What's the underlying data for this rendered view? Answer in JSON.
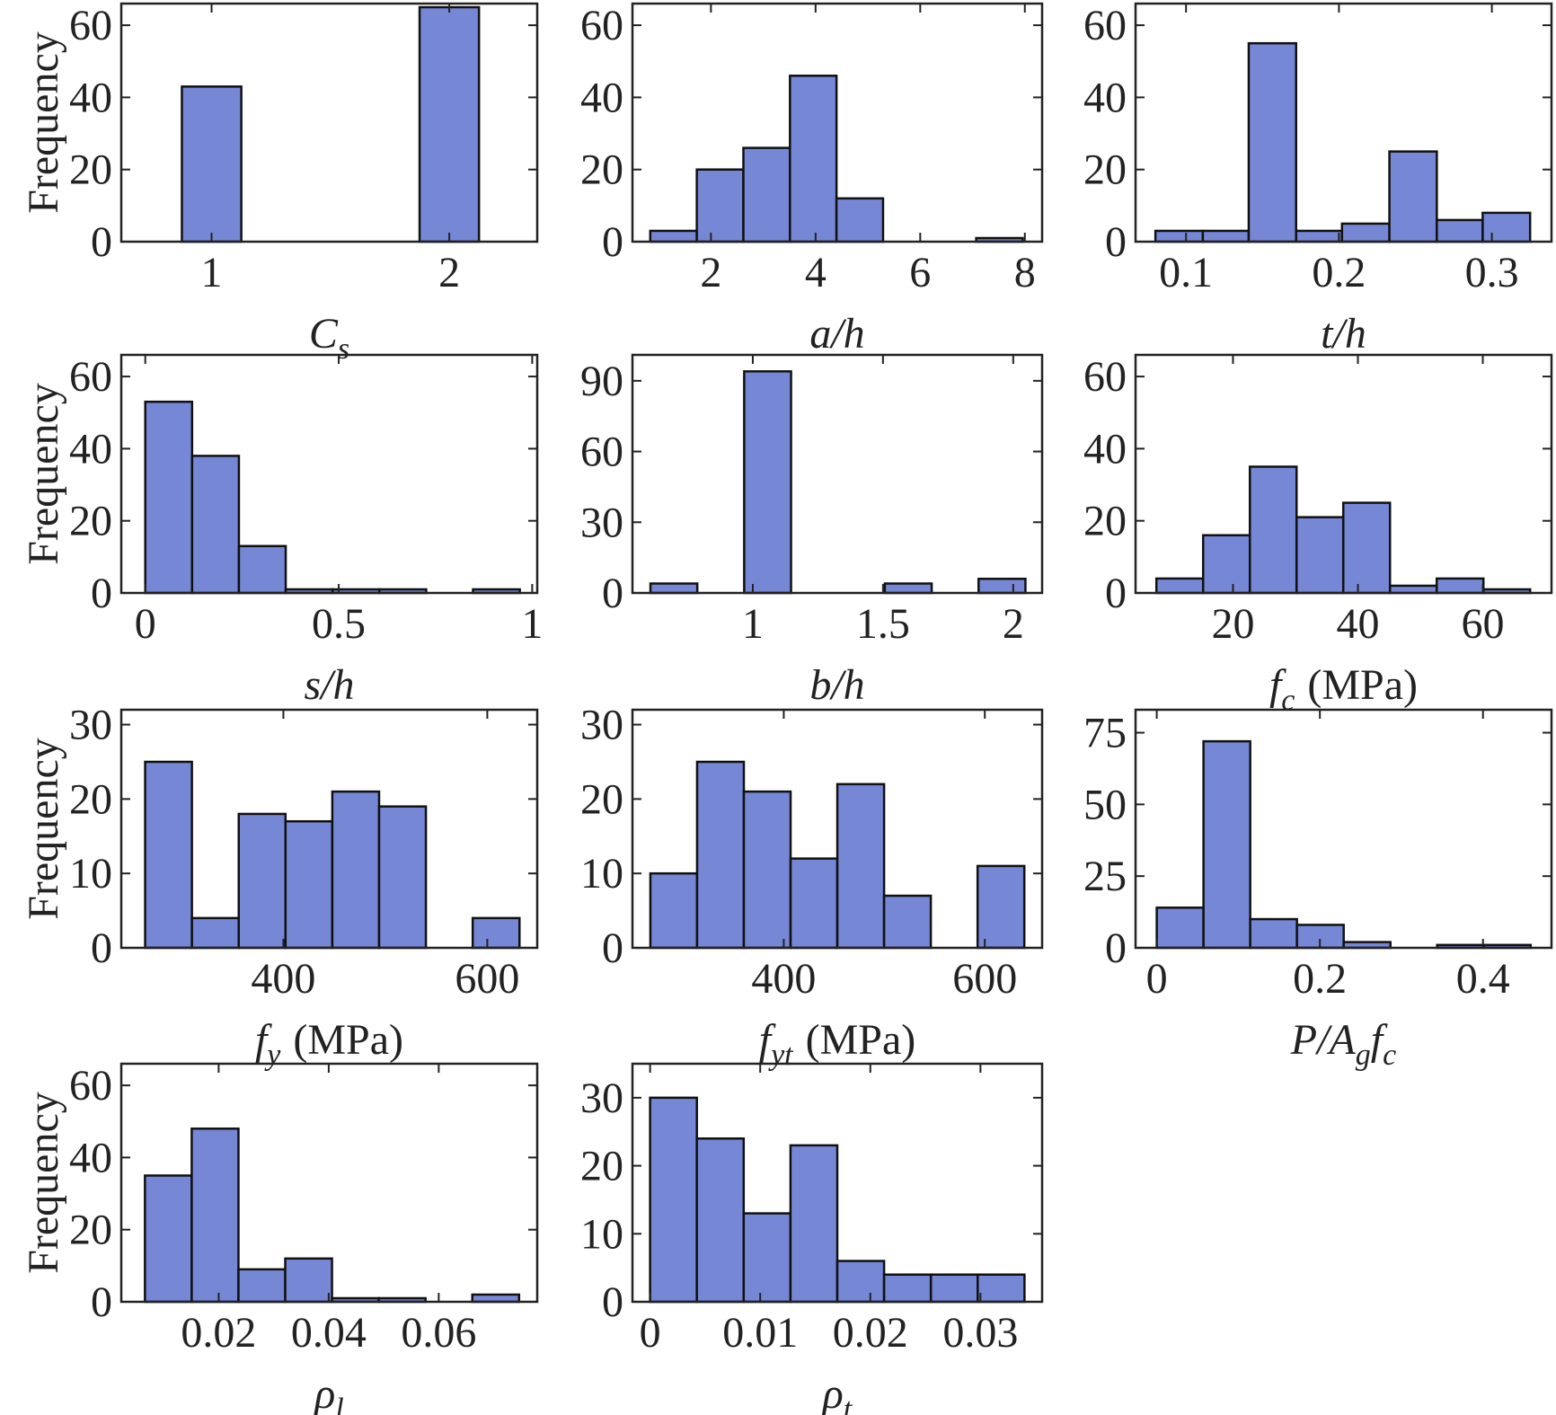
{
  "chart_data": [
    {
      "type": "histogram",
      "color": "#7687d6",
      "ylabel": "Frequency",
      "xlabel": [
        {
          "text": "C"
        },
        {
          "text": "s",
          "sub": true
        }
      ],
      "bins": [
        0.875,
        1.125,
        1.375,
        1.625,
        1.875,
        2.125
      ],
      "values": [
        43,
        0,
        0,
        0,
        65
      ],
      "xlim": [
        0.62,
        2.37
      ],
      "xticks": [
        1,
        2
      ],
      "ylim": [
        0,
        66
      ],
      "yticks": [
        0,
        20,
        40,
        60
      ]
    },
    {
      "type": "histogram",
      "color": "#7687d6",
      "xlabel": [
        {
          "text": "a/h"
        }
      ],
      "bins": [
        0.84,
        1.73,
        2.62,
        3.51,
        4.4,
        5.29,
        6.18,
        7.07,
        7.96
      ],
      "values": [
        3,
        20,
        26,
        46,
        12,
        0,
        0,
        1
      ],
      "xlim": [
        0.5,
        8.33
      ],
      "xticks": [
        2,
        4,
        6,
        8
      ],
      "ylim": [
        0,
        66
      ],
      "yticks": [
        0,
        20,
        40,
        60
      ]
    },
    {
      "type": "histogram",
      "color": "#7687d6",
      "xlabel": [
        {
          "text": "t/h"
        }
      ],
      "bins": [
        0.08,
        0.111,
        0.141,
        0.172,
        0.202,
        0.233,
        0.264,
        0.294,
        0.325
      ],
      "values": [
        3,
        3,
        55,
        3,
        5,
        25,
        6,
        8
      ],
      "xlim": [
        0.067,
        0.339
      ],
      "xticks": [
        0.1,
        0.2,
        0.3
      ],
      "ylim": [
        0,
        66
      ],
      "yticks": [
        0,
        20,
        40,
        60
      ]
    },
    {
      "type": "histogram",
      "color": "#7687d6",
      "ylabel": "Frequency",
      "xlabel": [
        {
          "text": "s/h"
        }
      ],
      "bins": [
        0,
        0.121,
        0.242,
        0.363,
        0.484,
        0.605,
        0.726,
        0.847,
        0.968
      ],
      "values": [
        53,
        38,
        13,
        1,
        1,
        1,
        0,
        1
      ],
      "xlim": [
        -0.062,
        1.013
      ],
      "xticks": [
        0,
        0.5,
        1
      ],
      "ylim": [
        0,
        66
      ],
      "yticks": [
        0,
        20,
        40,
        60
      ]
    },
    {
      "type": "histogram",
      "color": "#7687d6",
      "xlabel": [
        {
          "text": "b/h"
        }
      ],
      "bins": [
        0.607,
        0.787,
        0.967,
        1.147,
        1.327,
        1.507,
        1.687,
        1.867,
        2.047
      ],
      "values": [
        4,
        0,
        94,
        0,
        0,
        4,
        0,
        6
      ],
      "xlim": [
        0.538,
        2.111
      ],
      "xticks": [
        1,
        1.5,
        2
      ],
      "ylim": [
        0,
        101
      ],
      "yticks": [
        0,
        30,
        60,
        90
      ]
    },
    {
      "type": "histogram",
      "color": "#7687d6",
      "xlabel": [
        {
          "text": "f"
        },
        {
          "text": "c",
          "sub": true
        },
        {
          "text": "(MPa)",
          "upright": true
        }
      ],
      "bins": [
        7.74,
        15.22,
        22.7,
        30.18,
        37.66,
        45.14,
        52.62,
        60.1,
        67.58
      ],
      "values": [
        4,
        16,
        35,
        21,
        25,
        2,
        4,
        1
      ],
      "xlim": [
        4.4,
        71
      ],
      "xticks": [
        20,
        40,
        60
      ],
      "ylim": [
        0,
        66
      ],
      "yticks": [
        0,
        20,
        40,
        60
      ]
    },
    {
      "type": "histogram",
      "color": "#7687d6",
      "ylabel": "Frequency",
      "xlabel": [
        {
          "text": "f"
        },
        {
          "text": "y",
          "sub": true
        },
        {
          "text": "(MPa)",
          "upright": true
        }
      ],
      "bins": [
        264.4,
        310.3,
        356.2,
        402.1,
        448,
        493.9,
        539.8,
        585.7,
        631.6
      ],
      "values": [
        25,
        4,
        18,
        17,
        21,
        19,
        0,
        4
      ],
      "xlim": [
        241,
        649
      ],
      "xticks": [
        400,
        600
      ],
      "ylim": [
        0,
        32
      ],
      "yticks": [
        0,
        10,
        20,
        30
      ]
    },
    {
      "type": "histogram",
      "color": "#7687d6",
      "xlabel": [
        {
          "text": "f"
        },
        {
          "text": "yt",
          "sub": true
        },
        {
          "text": "(MPa)",
          "upright": true
        }
      ],
      "bins": [
        267.3,
        313.8,
        360.3,
        406.8,
        453.3,
        499.8,
        546.3,
        592.8,
        639.3
      ],
      "values": [
        10,
        25,
        21,
        12,
        22,
        7,
        0,
        11
      ],
      "xlim": [
        249.5,
        657
      ],
      "xticks": [
        400,
        600
      ],
      "ylim": [
        0,
        32
      ],
      "yticks": [
        0,
        10,
        20,
        30
      ]
    },
    {
      "type": "histogram",
      "color": "#7687d6",
      "xlabel": [
        {
          "text": "P/A"
        },
        {
          "text": "g",
          "sub": true
        },
        {
          "text": "f"
        },
        {
          "text": "c",
          "sub": true
        }
      ],
      "bins": [
        0,
        0.0573,
        0.1146,
        0.1719,
        0.2292,
        0.2865,
        0.3438,
        0.4011,
        0.4584
      ],
      "values": [
        14,
        72,
        10,
        8,
        2,
        0,
        1,
        1
      ],
      "xlim": [
        -0.026,
        0.484
      ],
      "xticks": [
        0,
        0.2,
        0.4
      ],
      "ylim": [
        0,
        83
      ],
      "yticks": [
        0,
        25,
        50,
        75
      ]
    },
    {
      "type": "histogram",
      "color": "#7687d6",
      "ylabel": "Frequency",
      "xlabel": [
        {
          "text": "ρ"
        },
        {
          "text": "l",
          "sub": true
        }
      ],
      "bins": [
        0.0066,
        0.0151,
        0.0236,
        0.0321,
        0.0406,
        0.0491,
        0.0576,
        0.0661,
        0.0746
      ],
      "values": [
        35,
        48,
        9,
        12,
        1,
        1,
        0,
        2
      ],
      "xlim": [
        0.0023,
        0.0779
      ],
      "xticks": [
        0.02,
        0.04,
        0.06
      ],
      "ylim": [
        0,
        66
      ],
      "yticks": [
        0,
        20,
        40,
        60
      ]
    },
    {
      "type": "histogram",
      "color": "#7687d6",
      "xlabel": [
        {
          "text": "ρ"
        },
        {
          "text": "t",
          "sub": true
        }
      ],
      "bins": [
        0,
        0.00425,
        0.0085,
        0.01275,
        0.017,
        0.02125,
        0.0255,
        0.02975,
        0.034
      ],
      "values": [
        30,
        24,
        13,
        23,
        6,
        4,
        4,
        4
      ],
      "xlim": [
        -0.0016,
        0.0356
      ],
      "xticks": [
        0,
        0.01,
        0.02,
        0.03
      ],
      "ylim": [
        0,
        35
      ],
      "yticks": [
        0,
        10,
        20,
        30
      ]
    }
  ]
}
